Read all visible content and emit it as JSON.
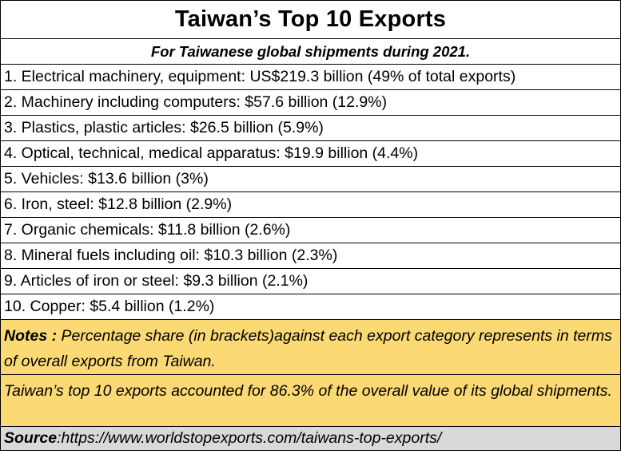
{
  "title": "Taiwan’s Top 10 Exports",
  "subtitle": "For Taiwanese global shipments during 2021.",
  "items": [
    "1. Electrical machinery, equipment: US$219.3 billion (49% of total exports)",
    "2. Machinery including computers: $57.6 billion (12.9%)",
    "3. Plastics, plastic articles: $26.5 billion (5.9%)",
    "4. Optical, technical, medical apparatus: $19.9 billion (4.4%)",
    "5. Vehicles: $13.6 billion (3%)",
    "6. Iron, steel: $12.8 billion (2.9%)",
    "7. Organic chemicals: $11.8 billion (2.6%)",
    "8. Mineral fuels including oil: $10.3 billion (2.3%)",
    "9. Articles of iron or steel: $9.3 billion (2.1%)",
    "10. Copper: $5.4 billion (1.2%)"
  ],
  "notes": {
    "label": "Notes",
    "separator": " :  ",
    "text": "Percentage share (in brackets)against each export category represents in terms of overall exports from Taiwan."
  },
  "summary": "Taiwan’s top 10 exports accounted for 86.3% of the overall value of its global shipments.",
  "source": {
    "label": "Source",
    "separator": " : ",
    "url": "https://www.worldstopexports.com/taiwans-top-exports/"
  },
  "colors": {
    "note_background": "#fbd975",
    "source_background": "#d9d9d9",
    "border": "#000000"
  }
}
